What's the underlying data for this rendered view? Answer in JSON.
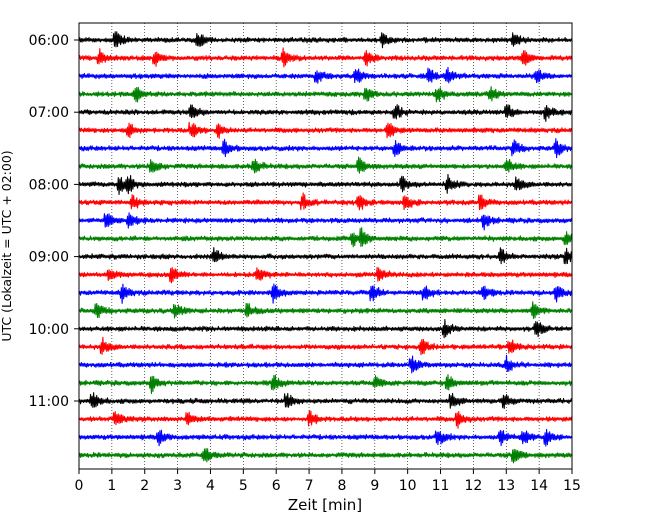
{
  "chart_data": {
    "type": "line",
    "xlabel": "Zeit  [min]",
    "ylabel": "UTC (Lokalzeit = UTC + 02:00)",
    "xlim": [
      0,
      15
    ],
    "x_ticks": [
      "0",
      "1",
      "2",
      "3",
      "4",
      "5",
      "6",
      "7",
      "8",
      "9",
      "10",
      "11",
      "12",
      "13",
      "14",
      "15"
    ],
    "y_tick_labels": [
      "06:00",
      "07:00",
      "08:00",
      "09:00",
      "10:00",
      "11:00"
    ],
    "y_tick_times": [
      "06:00",
      "07:00",
      "08:00",
      "09:00",
      "10:00",
      "11:00"
    ],
    "trace_interval_min": 15,
    "trace_start": "06:00",
    "trace_count": 24,
    "trace_color_cycle": [
      "#000000",
      "#ff0000",
      "#0000ff",
      "#008000"
    ],
    "grid": {
      "vertical": true,
      "style": "dotted"
    },
    "events_min": [
      [
        1.1,
        3.6,
        9.2,
        13.2
      ],
      [
        0.6,
        2.3,
        6.2,
        8.7,
        13.5
      ],
      [
        7.2,
        8.4,
        10.6,
        11.2,
        13.9
      ],
      [
        1.7,
        8.7,
        10.9,
        12.5
      ],
      [
        3.4,
        9.6,
        13.0,
        14.2
      ],
      [
        1.5,
        3.4,
        4.2,
        9.4
      ],
      [
        4.4,
        9.6,
        13.2,
        14.5
      ],
      [
        2.2,
        5.3,
        8.5,
        13.0
      ],
      [
        1.2,
        1.5,
        9.8,
        11.2,
        13.3
      ],
      [
        1.6,
        6.8,
        8.5,
        9.9,
        12.2
      ],
      [
        0.8,
        1.5,
        12.3
      ],
      [
        8.3,
        8.6,
        14.8
      ],
      [
        4.1,
        12.8,
        14.8
      ],
      [
        0.9,
        2.8,
        5.4,
        9.1
      ],
      [
        1.3,
        5.9,
        8.9,
        10.5,
        12.3,
        14.5
      ],
      [
        0.5,
        2.9,
        5.1,
        13.8
      ],
      [
        11.1,
        13.9
      ],
      [
        0.7,
        10.4,
        13.1
      ],
      [
        10.1,
        13.0
      ],
      [
        2.2,
        5.9,
        9.0,
        11.2
      ],
      [
        0.4,
        6.3,
        11.3,
        12.9
      ],
      [
        1.1,
        3.3,
        7.0,
        11.5
      ],
      [
        2.4,
        10.9,
        12.8,
        13.5,
        14.2
      ],
      [
        3.8,
        13.2
      ]
    ]
  }
}
